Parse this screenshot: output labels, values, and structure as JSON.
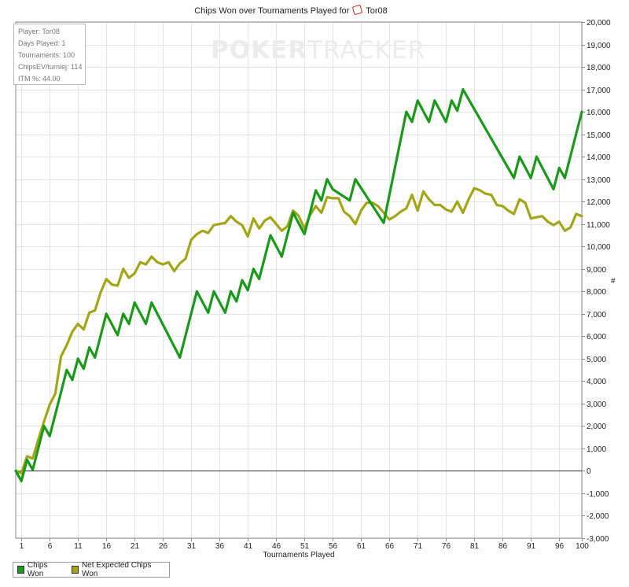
{
  "chart_data": {
    "type": "line",
    "title": "Chips Won over Tournaments Played for",
    "title_player": "Tor08",
    "xlabel": "Tournaments Played",
    "ylabel": "#",
    "xlim": [
      0,
      100
    ],
    "ylim": [
      -3000,
      20000
    ],
    "x_ticks": [
      1,
      6,
      11,
      16,
      21,
      26,
      31,
      36,
      41,
      46,
      51,
      56,
      61,
      66,
      71,
      76,
      81,
      86,
      91,
      96,
      100
    ],
    "y_ticks": [
      -3000,
      -2000,
      -1000,
      0,
      1000,
      2000,
      3000,
      4000,
      5000,
      6000,
      7000,
      8000,
      9000,
      10000,
      11000,
      12000,
      13000,
      14000,
      15000,
      16000,
      17000,
      18000,
      19000,
      20000
    ],
    "y_tick_labels": [
      "-3,000",
      "-2,000",
      "-1,000",
      "0",
      "1,000",
      "2,000",
      "3,000",
      "4,000",
      "5,000",
      "6,000",
      "7,000",
      "8,000",
      "9,000",
      "10,000",
      "11,000",
      "12,000",
      "13,000",
      "14,000",
      "15,000",
      "16,000",
      "17,000",
      "18,000",
      "19,000",
      "20,000"
    ],
    "grid": true,
    "legend_position": "bottom-left",
    "series": [
      {
        "name": "Chips Won",
        "color": "#1a9a1a",
        "x": [
          0,
          1,
          2,
          3,
          5,
          6,
          8,
          9,
          10,
          11,
          12,
          13,
          14,
          16,
          18,
          19,
          20,
          21,
          23,
          24,
          29,
          32,
          34,
          35,
          37,
          38,
          39,
          40,
          41,
          42,
          43,
          45,
          47,
          49,
          51,
          52,
          53,
          54,
          55,
          56,
          59,
          60,
          65,
          69,
          70,
          71,
          73,
          74,
          76,
          77,
          78,
          79,
          88,
          89,
          91,
          92,
          95,
          96,
          97,
          100
        ],
        "y": [
          0,
          -450,
          500,
          50,
          2000,
          1550,
          3500,
          4500,
          4050,
          5000,
          4550,
          5500,
          5050,
          7000,
          6050,
          7000,
          6550,
          7500,
          6550,
          7500,
          5050,
          8000,
          7050,
          8000,
          7050,
          8000,
          7550,
          8500,
          8050,
          9000,
          8550,
          10500,
          9550,
          11500,
          10550,
          11500,
          12500,
          12050,
          13000,
          12550,
          12050,
          13000,
          11050,
          16000,
          15550,
          16500,
          15550,
          16500,
          15550,
          16500,
          16050,
          17000,
          13050,
          14000,
          13050,
          14000,
          12550,
          13500,
          13050,
          16000
        ]
      },
      {
        "name": "Net Expected Chips Won",
        "color": "#a3a617",
        "x": [
          0,
          1,
          2,
          3,
          4,
          5,
          6,
          7,
          8,
          9,
          10,
          11,
          12,
          13,
          14,
          15,
          16,
          17,
          18,
          19,
          20,
          21,
          22,
          23,
          24,
          25,
          26,
          27,
          28,
          29,
          30,
          31,
          32,
          33,
          34,
          35,
          36,
          37,
          38,
          39,
          40,
          41,
          42,
          43,
          44,
          45,
          46,
          47,
          48,
          49,
          50,
          51,
          52,
          53,
          54,
          55,
          56,
          57,
          58,
          59,
          60,
          61,
          62,
          63,
          64,
          65,
          66,
          67,
          68,
          69,
          70,
          71,
          72,
          73,
          74,
          75,
          76,
          77,
          78,
          79,
          80,
          81,
          82,
          83,
          84,
          85,
          86,
          87,
          88,
          89,
          90,
          91,
          92,
          93,
          94,
          95,
          96,
          97,
          98,
          99,
          100
        ],
        "y": [
          0,
          -100,
          650,
          550,
          1400,
          2200,
          2950,
          3450,
          5100,
          5600,
          6200,
          6550,
          6300,
          7050,
          7150,
          7950,
          8550,
          8300,
          8250,
          9000,
          8600,
          8800,
          9300,
          9200,
          9550,
          9300,
          9200,
          9300,
          8900,
          9250,
          9450,
          10300,
          10550,
          10700,
          10600,
          10950,
          11000,
          11050,
          11350,
          11100,
          10950,
          10450,
          11250,
          10800,
          11150,
          11300,
          11000,
          10700,
          10900,
          11600,
          11350,
          10800,
          11400,
          11800,
          11500,
          12200,
          12150,
          12150,
          11550,
          11350,
          11000,
          11600,
          11950,
          11950,
          11800,
          11500,
          11200,
          11350,
          11550,
          11700,
          12300,
          11600,
          12450,
          12100,
          11850,
          11850,
          11650,
          11550,
          12000,
          11500,
          12100,
          12600,
          12500,
          12350,
          12300,
          11850,
          11800,
          11600,
          11450,
          12100,
          11950,
          11250,
          11300,
          11350,
          11100,
          10950,
          11100,
          10700,
          10850,
          11450,
          11350
        ]
      }
    ]
  },
  "stats_box": {
    "player": "Player: Tor08",
    "days": "Days Played: 1",
    "tournaments": "Tournaments: 100",
    "chipsev": "ChipsEV/turniej: 114",
    "itm": "ITM %: 44.00"
  },
  "logo": {
    "part1": "POKER",
    "part2": "TRACKER"
  }
}
